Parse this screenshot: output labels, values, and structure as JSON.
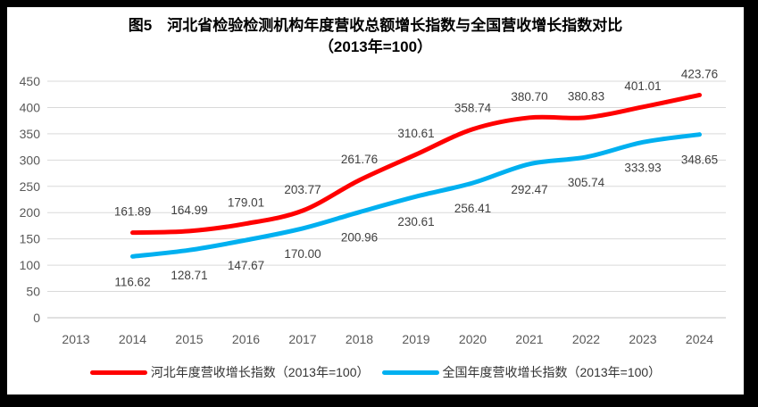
{
  "title": {
    "line1": "图5　河北省检验检测机构年度营收总额增长指数与全国营收增长指数对比",
    "line2": "（2013年=100）"
  },
  "chart_data": {
    "type": "line",
    "smooth": true,
    "grid": true,
    "legend_position": "bottom",
    "x": [
      "2013",
      "2014",
      "2015",
      "2016",
      "2017",
      "2018",
      "2019",
      "2020",
      "2021",
      "2022",
      "2023",
      "2024"
    ],
    "ylim": [
      0,
      450
    ],
    "ytick_step": 50,
    "yticks": [
      "0",
      "50",
      "100",
      "150",
      "200",
      "250",
      "300",
      "350",
      "400",
      "450"
    ],
    "series": [
      {
        "name": "河北年度营收增长指数（2013年=100）",
        "color": "#FF0000",
        "label_position": "above",
        "values": [
          null,
          161.89,
          164.99,
          179.01,
          203.77,
          261.76,
          310.61,
          358.74,
          380.7,
          380.83,
          401.01,
          423.76
        ],
        "value_labels": [
          null,
          "161.89",
          "164.99",
          "179.01",
          "203.77",
          "261.76",
          "310.61",
          "358.74",
          "380.70",
          "380.83",
          "401.01",
          "423.76"
        ]
      },
      {
        "name": "全国年度营收增长指数（2013年=100）",
        "color": "#00B0F0",
        "label_position": "below",
        "values": [
          null,
          116.62,
          128.71,
          147.67,
          170.0,
          200.96,
          230.61,
          256.41,
          292.47,
          305.74,
          333.93,
          348.65
        ],
        "value_labels": [
          null,
          "116.62",
          "128.71",
          "147.67",
          "170.00",
          "200.96",
          "230.61",
          "256.41",
          "292.47",
          "305.74",
          "333.93",
          "348.65"
        ]
      }
    ]
  },
  "colors": {
    "grid": "#D9D9D9",
    "zero_line": "#C0C0C0",
    "tick_label": "#595959",
    "data_label": "#404040",
    "title": "#000000",
    "background": "#FFFFFF",
    "frame": "#000000"
  }
}
